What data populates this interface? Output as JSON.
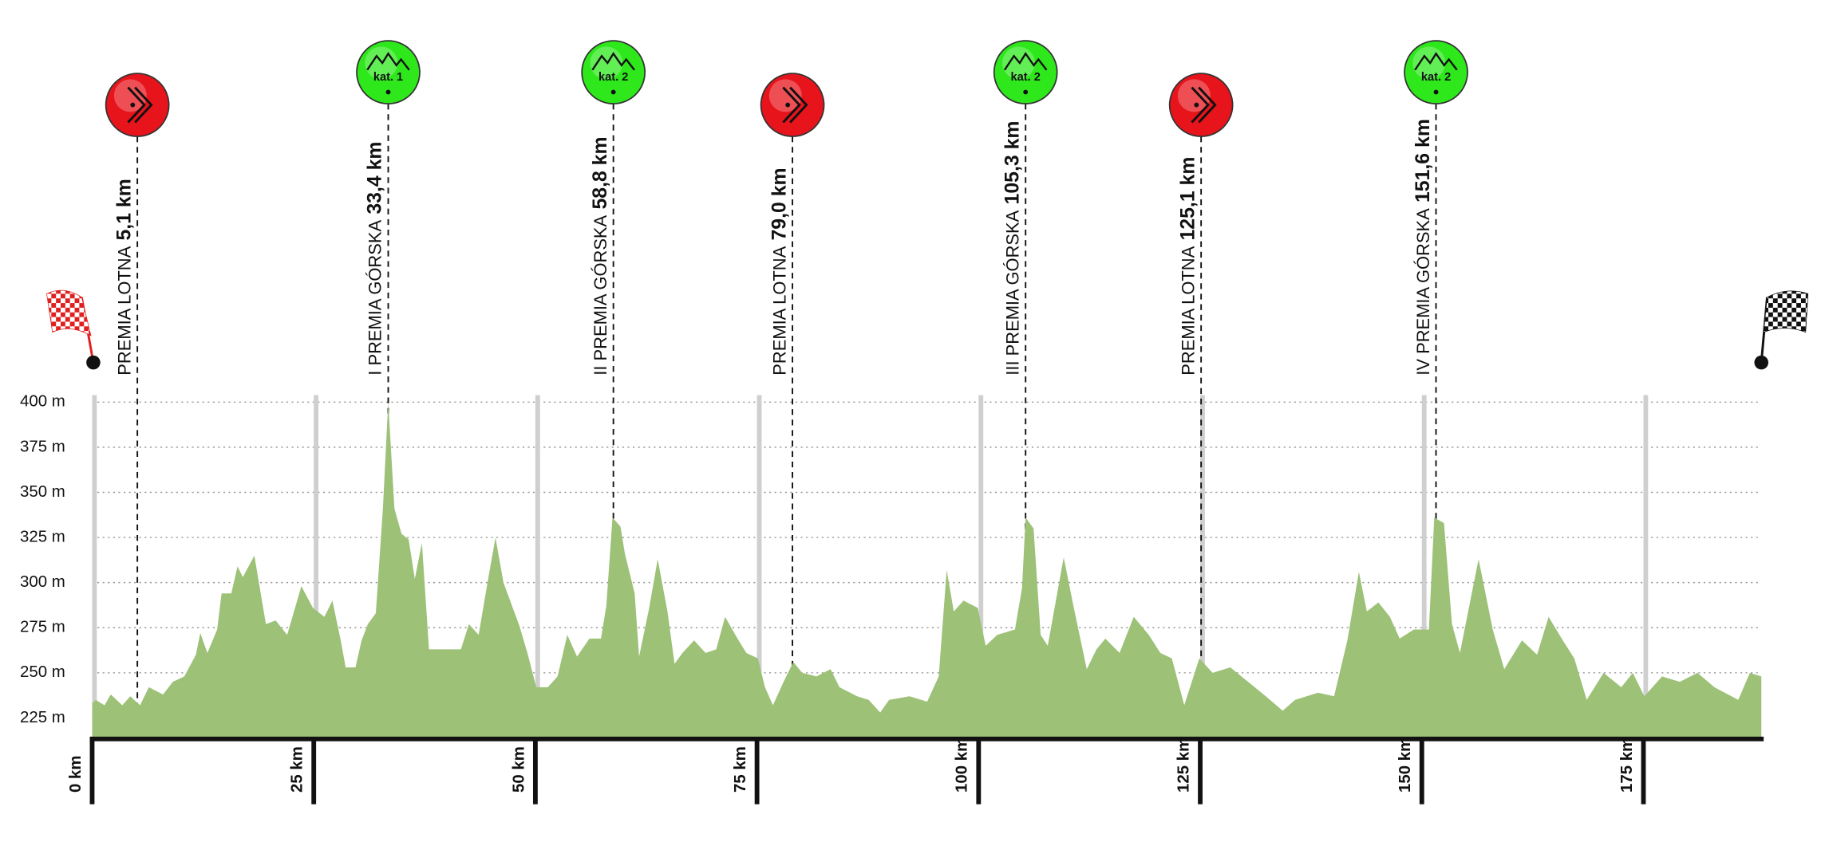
{
  "chart_data": {
    "type": "area",
    "x": [
      0,
      0.4,
      1.4,
      2.1,
      3.4,
      4.3,
      5.4,
      6.4,
      8.0,
      9.1,
      10.4,
      11.7,
      12.2,
      13.0,
      14.1,
      14.6,
      15.7,
      16.4,
      17.0,
      18.3,
      19.6,
      20.7,
      22.0,
      23.6,
      24.9,
      26.2,
      27.1,
      28.0,
      28.6,
      29.7,
      30.4,
      31.1,
      32.0,
      32.8,
      33.4,
      34.1,
      34.9,
      35.7,
      36.4,
      37.2,
      38.0,
      41.6,
      42.5,
      43.6,
      44.6,
      45.5,
      46.4,
      48.2,
      49.1,
      50.1,
      51.4,
      52.5,
      53.6,
      54.7,
      56.1,
      57.4,
      58.0,
      58.7,
      59.6,
      60.1,
      61.2,
      61.7,
      62.8,
      63.8,
      64.9,
      65.7,
      66.6,
      67.9,
      69.2,
      70.4,
      71.4,
      72.8,
      73.8,
      75.1,
      75.9,
      76.8,
      78.0,
      79.1,
      80.1,
      81.7,
      83.3,
      84.3,
      86.3,
      87.6,
      88.9,
      89.9,
      92.2,
      94.2,
      95.5,
      96.4,
      97.2,
      98.3,
      99.9,
      100.8,
      102.1,
      104.1,
      104.9,
      105.3,
      106.2,
      107.0,
      107.8,
      109.6,
      110.7,
      112.2,
      113.3,
      114.3,
      115.9,
      117.5,
      119.2,
      120.5,
      121.8,
      123.2,
      124.9,
      126.4,
      128.4,
      130.4,
      132.4,
      134.3,
      135.7,
      138.3,
      140.1,
      141.6,
      142.9,
      143.8,
      145.1,
      146.4,
      147.5,
      149.1,
      150.8,
      151.4,
      152.5,
      153.4,
      154.3,
      156.4,
      158.0,
      159.3,
      161.3,
      163.0,
      164.3,
      165.9,
      167.2,
      168.6,
      170.5,
      172.5,
      173.8,
      175.1,
      177.1,
      179.1,
      181.1,
      183.0,
      185.7,
      187.0,
      188.3
    ],
    "values": [
      233,
      235,
      232,
      238,
      232,
      237,
      232,
      242,
      238,
      245,
      248,
      260,
      272,
      261,
      274,
      294,
      294,
      309,
      303,
      315,
      277,
      279,
      271,
      298,
      286,
      281,
      290,
      269,
      253,
      253,
      268,
      277,
      283,
      341,
      400,
      341,
      327,
      324,
      302,
      322,
      263,
      263,
      277,
      271,
      300,
      325,
      300,
      276,
      261,
      242,
      242,
      248,
      271,
      259,
      269,
      269,
      287,
      336,
      331,
      316,
      294,
      259,
      285,
      313,
      284,
      255,
      261,
      268,
      261,
      263,
      281,
      269,
      261,
      258,
      242,
      232,
      245,
      256,
      250,
      248,
      252,
      242,
      237,
      235,
      228,
      235,
      237,
      234,
      248,
      307,
      284,
      290,
      286,
      265,
      271,
      274,
      297,
      336,
      330,
      271,
      265,
      314,
      287,
      252,
      263,
      269,
      261,
      281,
      271,
      261,
      258,
      232,
      258,
      250,
      253,
      245,
      237,
      229,
      235,
      239,
      237,
      268,
      306,
      284,
      289,
      281,
      269,
      274,
      274,
      336,
      333,
      277,
      261,
      313,
      274,
      252,
      268,
      260,
      281,
      268,
      258,
      235,
      250,
      242,
      250,
      237,
      248,
      245,
      250,
      242,
      235,
      250,
      248
    ],
    "color": "#9cc177",
    "xlim": [
      0,
      188.3
    ],
    "ylim": [
      214,
      400
    ],
    "xticks": [
      {
        "value": 0,
        "label": "0 km"
      },
      {
        "value": 25,
        "label": "25 km"
      },
      {
        "value": 50,
        "label": "50 km"
      },
      {
        "value": 75,
        "label": "75 km"
      },
      {
        "value": 100,
        "label": "100 km"
      },
      {
        "value": 125,
        "label": "125 km"
      },
      {
        "value": 150,
        "label": "150 km"
      },
      {
        "value": 175,
        "label": "175 km"
      }
    ],
    "yticks": [
      {
        "value": 225,
        "label": "225 m"
      },
      {
        "value": 250,
        "label": "250 m"
      },
      {
        "value": 275,
        "label": "275 m"
      },
      {
        "value": 300,
        "label": "300 m"
      },
      {
        "value": 325,
        "label": "325 m"
      },
      {
        "value": 350,
        "label": "350 m"
      },
      {
        "value": 375,
        "label": "375 m"
      },
      {
        "value": 400,
        "label": "400 m"
      }
    ],
    "grid": true,
    "markers": [
      {
        "km": 5.1,
        "label": "PREMIA LOTNA",
        "km_label": "5,1 km",
        "color": "#e8141c"
      },
      {
        "km": 33.4,
        "label": "I PREMIA GÓRSKA",
        "km_label": "33,4 km",
        "category": "kat. 1",
        "color": "#2ee81c"
      },
      {
        "km": 58.8,
        "label": "II PREMIA GÓRSKA",
        "km_label": "58,8 km",
        "category": "kat. 2",
        "color": "#2ee81c"
      },
      {
        "km": 79.0,
        "label": "PREMIA LOTNA",
        "km_label": "79,0 km",
        "color": "#e8141c"
      },
      {
        "km": 105.3,
        "label": "III PREMIA GÓRSKA",
        "km_label": "105,3 km",
        "category": "kat. 2",
        "color": "#2ee81c"
      },
      {
        "km": 125.1,
        "label": "PREMIA LOTNA",
        "km_label": "125,1 km",
        "color": "#e8141c"
      },
      {
        "km": 151.6,
        "label": "IV PREMIA GÓRSKA",
        "km_label": "151,6 km",
        "category": "kat. 2",
        "color": "#2ee81c"
      }
    ]
  }
}
